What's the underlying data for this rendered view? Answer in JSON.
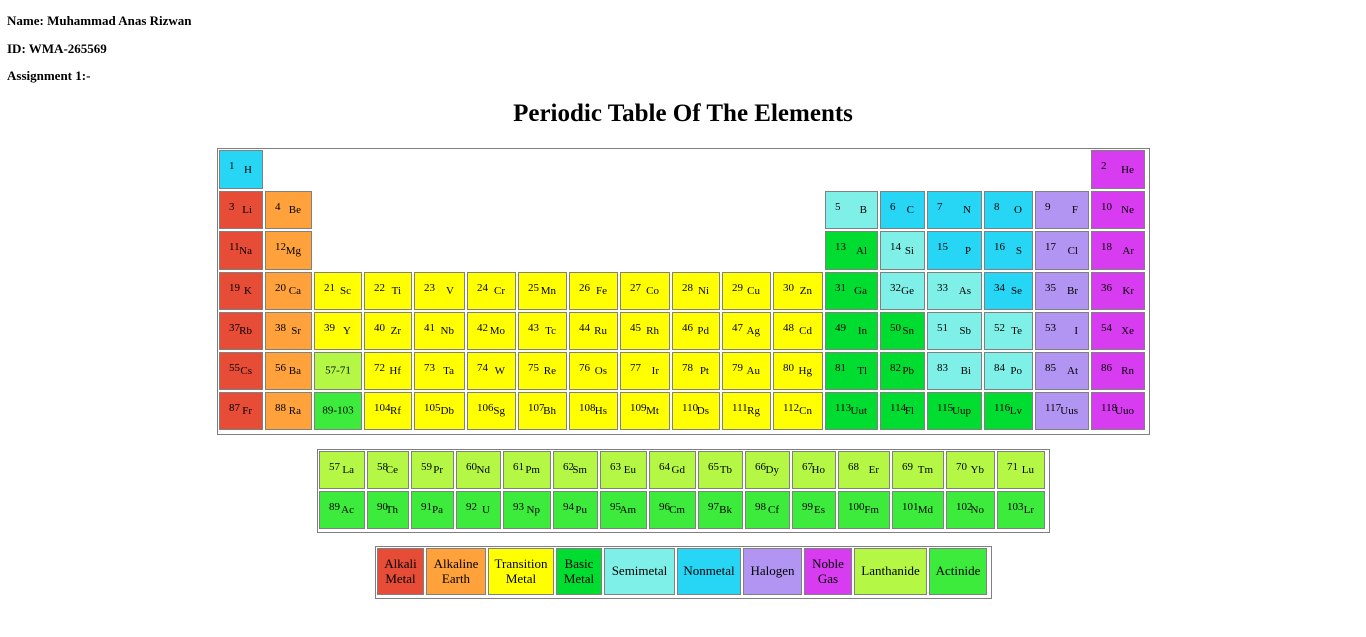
{
  "header": {
    "name_label": "Name: Muhammad Anas Rizwan",
    "id_label": "ID: WMA-265569",
    "assignment_label": "Assignment 1:-"
  },
  "title": "Periodic Table Of The Elements",
  "colors": {
    "alkali": "#e74c37",
    "alkaline": "#ffa23c",
    "transition": "#ffff00",
    "basic": "#00dd30",
    "semimetal": "#7ff0e8",
    "nonmetal": "#27d6f5",
    "halogen": "#b294f2",
    "noble": "#d83cf0",
    "lanthanide": "#b4f845",
    "actinide": "#3ceb3c"
  },
  "main": [
    {
      "n": "1",
      "s": "H",
      "c": "nonmetal",
      "col": 1,
      "row": 1
    },
    {
      "n": "2",
      "s": "He",
      "c": "noble",
      "col": 18,
      "row": 1
    },
    {
      "n": "3",
      "s": "Li",
      "c": "alkali",
      "col": 1,
      "row": 2
    },
    {
      "n": "4",
      "s": "Be",
      "c": "alkaline",
      "col": 2,
      "row": 2
    },
    {
      "n": "5",
      "s": "B",
      "c": "semimetal",
      "col": 13,
      "row": 2
    },
    {
      "n": "6",
      "s": "C",
      "c": "nonmetal",
      "col": 14,
      "row": 2
    },
    {
      "n": "7",
      "s": "N",
      "c": "nonmetal",
      "col": 15,
      "row": 2
    },
    {
      "n": "8",
      "s": "O",
      "c": "nonmetal",
      "col": 16,
      "row": 2
    },
    {
      "n": "9",
      "s": "F",
      "c": "halogen",
      "col": 17,
      "row": 2
    },
    {
      "n": "10",
      "s": "Ne",
      "c": "noble",
      "col": 18,
      "row": 2
    },
    {
      "n": "11",
      "s": "Na",
      "c": "alkali",
      "col": 1,
      "row": 3
    },
    {
      "n": "12",
      "s": "Mg",
      "c": "alkaline",
      "col": 2,
      "row": 3
    },
    {
      "n": "13",
      "s": "Al",
      "c": "basic",
      "col": 13,
      "row": 3
    },
    {
      "n": "14",
      "s": "Si",
      "c": "semimetal",
      "col": 14,
      "row": 3
    },
    {
      "n": "15",
      "s": "P",
      "c": "nonmetal",
      "col": 15,
      "row": 3
    },
    {
      "n": "16",
      "s": "S",
      "c": "nonmetal",
      "col": 16,
      "row": 3
    },
    {
      "n": "17",
      "s": "Cl",
      "c": "halogen",
      "col": 17,
      "row": 3
    },
    {
      "n": "18",
      "s": "Ar",
      "c": "noble",
      "col": 18,
      "row": 3
    },
    {
      "n": "19",
      "s": "K",
      "c": "alkali",
      "col": 1,
      "row": 4
    },
    {
      "n": "20",
      "s": "Ca",
      "c": "alkaline",
      "col": 2,
      "row": 4
    },
    {
      "n": "21",
      "s": "Sc",
      "c": "transition",
      "col": 3,
      "row": 4
    },
    {
      "n": "22",
      "s": "Ti",
      "c": "transition",
      "col": 4,
      "row": 4
    },
    {
      "n": "23",
      "s": "V",
      "c": "transition",
      "col": 5,
      "row": 4
    },
    {
      "n": "24",
      "s": "Cr",
      "c": "transition",
      "col": 6,
      "row": 4
    },
    {
      "n": "25",
      "s": "Mn",
      "c": "transition",
      "col": 7,
      "row": 4
    },
    {
      "n": "26",
      "s": "Fe",
      "c": "transition",
      "col": 8,
      "row": 4
    },
    {
      "n": "27",
      "s": "Co",
      "c": "transition",
      "col": 9,
      "row": 4
    },
    {
      "n": "28",
      "s": "Ni",
      "c": "transition",
      "col": 10,
      "row": 4
    },
    {
      "n": "29",
      "s": "Cu",
      "c": "transition",
      "col": 11,
      "row": 4
    },
    {
      "n": "30",
      "s": "Zn",
      "c": "transition",
      "col": 12,
      "row": 4
    },
    {
      "n": "31",
      "s": "Ga",
      "c": "basic",
      "col": 13,
      "row": 4
    },
    {
      "n": "32",
      "s": "Ge",
      "c": "semimetal",
      "col": 14,
      "row": 4
    },
    {
      "n": "33",
      "s": "As",
      "c": "semimetal",
      "col": 15,
      "row": 4
    },
    {
      "n": "34",
      "s": "Se",
      "c": "nonmetal",
      "col": 16,
      "row": 4
    },
    {
      "n": "35",
      "s": "Br",
      "c": "halogen",
      "col": 17,
      "row": 4
    },
    {
      "n": "36",
      "s": "Kr",
      "c": "noble",
      "col": 18,
      "row": 4
    },
    {
      "n": "37",
      "s": "Rb",
      "c": "alkali",
      "col": 1,
      "row": 5
    },
    {
      "n": "38",
      "s": "Sr",
      "c": "alkaline",
      "col": 2,
      "row": 5
    },
    {
      "n": "39",
      "s": "Y",
      "c": "transition",
      "col": 3,
      "row": 5
    },
    {
      "n": "40",
      "s": "Zr",
      "c": "transition",
      "col": 4,
      "row": 5
    },
    {
      "n": "41",
      "s": "Nb",
      "c": "transition",
      "col": 5,
      "row": 5
    },
    {
      "n": "42",
      "s": "Mo",
      "c": "transition",
      "col": 6,
      "row": 5
    },
    {
      "n": "43",
      "s": "Tc",
      "c": "transition",
      "col": 7,
      "row": 5
    },
    {
      "n": "44",
      "s": "Ru",
      "c": "transition",
      "col": 8,
      "row": 5
    },
    {
      "n": "45",
      "s": "Rh",
      "c": "transition",
      "col": 9,
      "row": 5
    },
    {
      "n": "46",
      "s": "Pd",
      "c": "transition",
      "col": 10,
      "row": 5
    },
    {
      "n": "47",
      "s": "Ag",
      "c": "transition",
      "col": 11,
      "row": 5
    },
    {
      "n": "48",
      "s": "Cd",
      "c": "transition",
      "col": 12,
      "row": 5
    },
    {
      "n": "49",
      "s": "In",
      "c": "basic",
      "col": 13,
      "row": 5
    },
    {
      "n": "50",
      "s": "Sn",
      "c": "basic",
      "col": 14,
      "row": 5
    },
    {
      "n": "51",
      "s": "Sb",
      "c": "semimetal",
      "col": 15,
      "row": 5
    },
    {
      "n": "52",
      "s": "Te",
      "c": "semimetal",
      "col": 16,
      "row": 5
    },
    {
      "n": "53",
      "s": "I",
      "c": "halogen",
      "col": 17,
      "row": 5
    },
    {
      "n": "54",
      "s": "Xe",
      "c": "noble",
      "col": 18,
      "row": 5
    },
    {
      "n": "55",
      "s": "Cs",
      "c": "alkali",
      "col": 1,
      "row": 6
    },
    {
      "n": "56",
      "s": "Ba",
      "c": "alkaline",
      "col": 2,
      "row": 6
    },
    {
      "ref": "57-71",
      "c": "lanthanide",
      "col": 3,
      "row": 6
    },
    {
      "n": "72",
      "s": "Hf",
      "c": "transition",
      "col": 4,
      "row": 6
    },
    {
      "n": "73",
      "s": "Ta",
      "c": "transition",
      "col": 5,
      "row": 6
    },
    {
      "n": "74",
      "s": "W",
      "c": "transition",
      "col": 6,
      "row": 6
    },
    {
      "n": "75",
      "s": "Re",
      "c": "transition",
      "col": 7,
      "row": 6
    },
    {
      "n": "76",
      "s": "Os",
      "c": "transition",
      "col": 8,
      "row": 6
    },
    {
      "n": "77",
      "s": "Ir",
      "c": "transition",
      "col": 9,
      "row": 6
    },
    {
      "n": "78",
      "s": "Pt",
      "c": "transition",
      "col": 10,
      "row": 6
    },
    {
      "n": "79",
      "s": "Au",
      "c": "transition",
      "col": 11,
      "row": 6
    },
    {
      "n": "80",
      "s": "Hg",
      "c": "transition",
      "col": 12,
      "row": 6
    },
    {
      "n": "81",
      "s": "Tl",
      "c": "basic",
      "col": 13,
      "row": 6
    },
    {
      "n": "82",
      "s": "Pb",
      "c": "basic",
      "col": 14,
      "row": 6
    },
    {
      "n": "83",
      "s": "Bi",
      "c": "semimetal",
      "col": 15,
      "row": 6
    },
    {
      "n": "84",
      "s": "Po",
      "c": "semimetal",
      "col": 16,
      "row": 6
    },
    {
      "n": "85",
      "s": "At",
      "c": "halogen",
      "col": 17,
      "row": 6
    },
    {
      "n": "86",
      "s": "Rn",
      "c": "noble",
      "col": 18,
      "row": 6
    },
    {
      "n": "87",
      "s": "Fr",
      "c": "alkali",
      "col": 1,
      "row": 7
    },
    {
      "n": "88",
      "s": "Ra",
      "c": "alkaline",
      "col": 2,
      "row": 7
    },
    {
      "ref": "89-103",
      "c": "actinide",
      "col": 3,
      "row": 7
    },
    {
      "n": "104",
      "s": "Rf",
      "c": "transition",
      "col": 4,
      "row": 7
    },
    {
      "n": "105",
      "s": "Db",
      "c": "transition",
      "col": 5,
      "row": 7
    },
    {
      "n": "106",
      "s": "Sg",
      "c": "transition",
      "col": 6,
      "row": 7
    },
    {
      "n": "107",
      "s": "Bh",
      "c": "transition",
      "col": 7,
      "row": 7
    },
    {
      "n": "108",
      "s": "Hs",
      "c": "transition",
      "col": 8,
      "row": 7
    },
    {
      "n": "109",
      "s": "Mt",
      "c": "transition",
      "col": 9,
      "row": 7
    },
    {
      "n": "110",
      "s": "Ds",
      "c": "transition",
      "col": 10,
      "row": 7
    },
    {
      "n": "111",
      "s": "Rg",
      "c": "transition",
      "col": 11,
      "row": 7
    },
    {
      "n": "112",
      "s": "Cn",
      "c": "transition",
      "col": 12,
      "row": 7
    },
    {
      "n": "113",
      "s": "Uut",
      "c": "basic",
      "col": 13,
      "row": 7
    },
    {
      "n": "114",
      "s": "Fl",
      "c": "basic",
      "col": 14,
      "row": 7
    },
    {
      "n": "115",
      "s": "Uup",
      "c": "basic",
      "col": 15,
      "row": 7
    },
    {
      "n": "116",
      "s": "Lv",
      "c": "basic",
      "col": 16,
      "row": 7
    },
    {
      "n": "117",
      "s": "Uus",
      "c": "halogen",
      "col": 17,
      "row": 7
    },
    {
      "n": "118",
      "s": "Uuo",
      "c": "noble",
      "col": 18,
      "row": 7
    }
  ],
  "lanthanides": [
    {
      "n": "57",
      "s": "La"
    },
    {
      "n": "58",
      "s": "Ce"
    },
    {
      "n": "59",
      "s": "Pr"
    },
    {
      "n": "60",
      "s": "Nd"
    },
    {
      "n": "61",
      "s": "Pm"
    },
    {
      "n": "62",
      "s": "Sm"
    },
    {
      "n": "63",
      "s": "Eu"
    },
    {
      "n": "64",
      "s": "Gd"
    },
    {
      "n": "65",
      "s": "Tb"
    },
    {
      "n": "66",
      "s": "Dy"
    },
    {
      "n": "67",
      "s": "Ho"
    },
    {
      "n": "68",
      "s": "Er"
    },
    {
      "n": "69",
      "s": "Tm"
    },
    {
      "n": "70",
      "s": "Yb"
    },
    {
      "n": "71",
      "s": "Lu"
    }
  ],
  "actinides": [
    {
      "n": "89",
      "s": "Ac"
    },
    {
      "n": "90",
      "s": "Th"
    },
    {
      "n": "91",
      "s": "Pa"
    },
    {
      "n": "92",
      "s": "U"
    },
    {
      "n": "93",
      "s": "Np"
    },
    {
      "n": "94",
      "s": "Pu"
    },
    {
      "n": "95",
      "s": "Am"
    },
    {
      "n": "96",
      "s": "Cm"
    },
    {
      "n": "97",
      "s": "Bk"
    },
    {
      "n": "98",
      "s": "Cf"
    },
    {
      "n": "99",
      "s": "Es"
    },
    {
      "n": "100",
      "s": "Fm"
    },
    {
      "n": "101",
      "s": "Md"
    },
    {
      "n": "102",
      "s": "No"
    },
    {
      "n": "103",
      "s": "Lr"
    }
  ],
  "legend": [
    {
      "label": "Alkali Metal",
      "c": "alkali"
    },
    {
      "label": "Alkaline Earth",
      "c": "alkaline"
    },
    {
      "label": "Transition Metal",
      "c": "transition"
    },
    {
      "label": "Basic Metal",
      "c": "basic"
    },
    {
      "label": "Semimetal",
      "c": "semimetal"
    },
    {
      "label": "Nonmetal",
      "c": "nonmetal"
    },
    {
      "label": "Halogen",
      "c": "halogen"
    },
    {
      "label": "Noble Gas",
      "c": "noble"
    },
    {
      "label": "Lanthanide",
      "c": "lanthanide"
    },
    {
      "label": "Actinide",
      "c": "actinide"
    }
  ]
}
